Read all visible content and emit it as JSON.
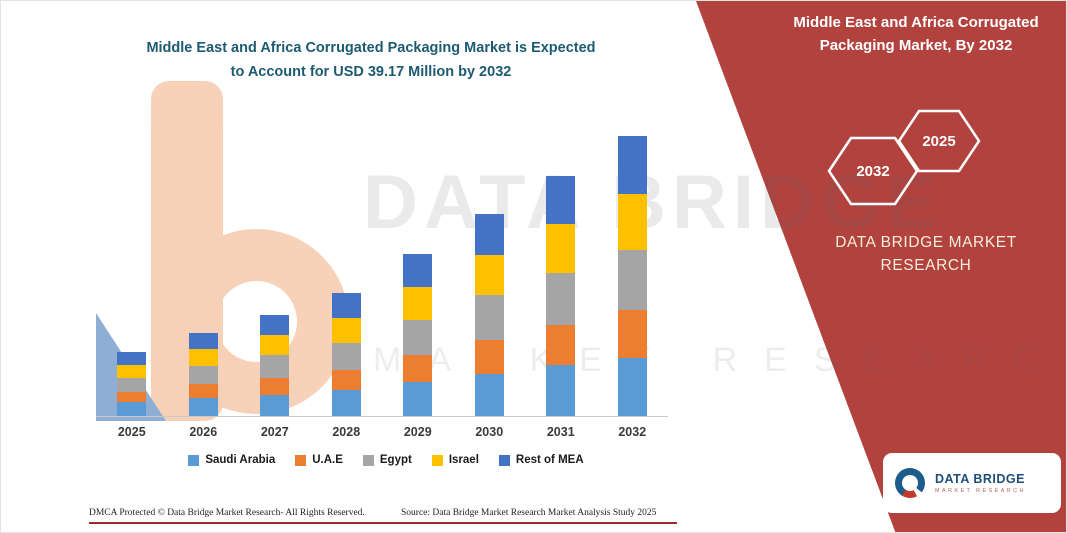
{
  "header": {
    "chart_title_line1": "Middle East and Africa Corrugated Packaging Market is Expected",
    "chart_title_line2": "to Account for USD 39.17 Million by 2032"
  },
  "right_panel": {
    "bg_color": "#B2423E",
    "title_line1": "Middle East and Africa Corrugated",
    "title_line2": "Packaging Market, By 2032",
    "hexagons": [
      {
        "year": "2032"
      },
      {
        "year": "2025"
      }
    ],
    "brand_line1": "DATA BRIDGE MARKET",
    "brand_line2": "RESEARCH"
  },
  "watermark": {
    "line1": "DATA BRIDGE",
    "line2": "MARKET RESEARCH"
  },
  "logo": {
    "name": "DATA BRIDGE",
    "subtitle": "MARKET RESEARCH"
  },
  "footer": {
    "dmca": "DMCA Protected © Data Bridge Market Research-  All Rights Reserved.",
    "source": "Source: Data Bridge Market Research  Market Analysis Study 2025"
  },
  "chart_data": {
    "type": "bar",
    "stacked": true,
    "title": "Middle East and Africa Corrugated Packaging Market is Expected to Account for USD 39.17 Million by 2032",
    "xlabel": "",
    "ylabel": "",
    "ylim": [
      0,
      43
    ],
    "grid": false,
    "legend_position": "bottom",
    "categories": [
      "2025",
      "2026",
      "2027",
      "2028",
      "2029",
      "2030",
      "2031",
      "2032"
    ],
    "series": [
      {
        "name": "Saudi Arabia",
        "color": "#5B9BD5",
        "values": [
          1.9,
          2.5,
          3.0,
          3.6,
          4.8,
          5.9,
          7.1,
          8.2
        ]
      },
      {
        "name": "U.A.E",
        "color": "#ED7D31",
        "values": [
          1.5,
          2.0,
          2.4,
          2.9,
          3.8,
          4.8,
          5.7,
          6.6
        ]
      },
      {
        "name": "Egypt",
        "color": "#A5A5A5",
        "values": [
          1.9,
          2.5,
          3.1,
          3.7,
          4.9,
          6.2,
          7.3,
          8.5
        ]
      },
      {
        "name": "Israel",
        "color": "#FFC000",
        "values": [
          1.8,
          2.4,
          2.8,
          3.5,
          4.6,
          5.7,
          6.8,
          7.87
        ]
      },
      {
        "name": "Rest of MEA",
        "color": "#4472C4",
        "values": [
          1.8,
          2.3,
          2.9,
          3.5,
          4.6,
          5.7,
          6.8,
          8.0
        ]
      }
    ],
    "totals_by_year": [
      8.9,
      11.7,
      14.2,
      17.2,
      22.7,
      28.3,
      33.7,
      39.17
    ]
  }
}
